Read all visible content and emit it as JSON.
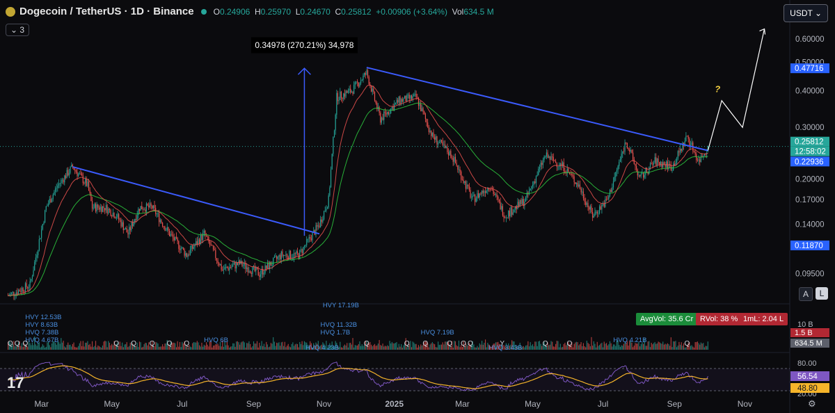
{
  "header": {
    "symbol": "Dogecoin / TetherUS · 1D · Binance",
    "open_label": "O",
    "open": "0.24906",
    "high_label": "H",
    "high": "0.25970",
    "low_label": "L",
    "low": "0.24670",
    "close_label": "C",
    "close": "0.25812",
    "change": "+0.00906 (+3.64%)",
    "vol_label": "Vol",
    "vol": "634.5 M",
    "indicators_count": "3"
  },
  "currency_button": "USDT",
  "scale_buttons": [
    "A",
    "L"
  ],
  "badges": {
    "avg_vol": "AvgVol: 35.6 Cr",
    "rvol": "RVol: 38 %",
    "one_ml": "1mL: 2.04 L"
  },
  "colors": {
    "up": "#26a69a",
    "down": "#ef5350",
    "trendline": "#3b5bfd",
    "ema": "#2ecc40",
    "rsi": "#7e57c2",
    "rsi_ma": "#f5b42a",
    "accent_blue": "#2962ff"
  },
  "chart_data": {
    "type": "candlestick",
    "scale": "log",
    "ylim": [
      0.075,
      0.7
    ],
    "price_axis_ticks": [
      "0.60000",
      "0.50000",
      "0.40000",
      "0.30000",
      "0.20000",
      "0.17000",
      "0.14000",
      "0.09500"
    ],
    "price_labels": [
      {
        "value": "0.47716",
        "color": "#2962ff"
      },
      {
        "value": "0.25812",
        "color": "#26a69a"
      },
      {
        "value": "12:58:02",
        "color": "#26a69a"
      },
      {
        "value": "0.22936",
        "color": "#2962ff"
      },
      {
        "value": "0.11870",
        "color": "#2962ff"
      }
    ],
    "time_axis": [
      "Mar",
      "May",
      "Jul",
      "Sep",
      "Nov",
      "2025",
      "Mar",
      "May",
      "Jul",
      "Sep",
      "Nov"
    ],
    "price_path": [
      [
        "2024-02-01",
        0.08
      ],
      [
        "2024-02-20",
        0.087
      ],
      [
        "2024-03-05",
        0.16
      ],
      [
        "2024-03-15",
        0.19
      ],
      [
        "2024-03-28",
        0.22
      ],
      [
        "2024-04-10",
        0.19
      ],
      [
        "2024-04-14",
        0.16
      ],
      [
        "2024-04-25",
        0.16
      ],
      [
        "2024-05-05",
        0.15
      ],
      [
        "2024-05-15",
        0.13
      ],
      [
        "2024-05-25",
        0.16
      ],
      [
        "2024-06-05",
        0.16
      ],
      [
        "2024-06-20",
        0.13
      ],
      [
        "2024-07-05",
        0.11
      ],
      [
        "2024-07-20",
        0.13
      ],
      [
        "2024-08-05",
        0.098
      ],
      [
        "2024-08-20",
        0.103
      ],
      [
        "2024-09-06",
        0.095
      ],
      [
        "2024-09-25",
        0.11
      ],
      [
        "2024-10-10",
        0.11
      ],
      [
        "2024-10-28",
        0.14
      ],
      [
        "2024-11-05",
        0.17
      ],
      [
        "2024-11-12",
        0.38
      ],
      [
        "2024-11-25",
        0.4
      ],
      [
        "2024-12-08",
        0.46
      ],
      [
        "2024-12-20",
        0.32
      ],
      [
        "2025-01-05",
        0.37
      ],
      [
        "2025-01-20",
        0.38
      ],
      [
        "2025-02-03",
        0.28
      ],
      [
        "2025-02-20",
        0.24
      ],
      [
        "2025-03-10",
        0.17
      ],
      [
        "2025-03-25",
        0.19
      ],
      [
        "2025-04-07",
        0.15
      ],
      [
        "2025-04-25",
        0.17
      ],
      [
        "2025-05-12",
        0.24
      ],
      [
        "2025-05-28",
        0.22
      ],
      [
        "2025-06-10",
        0.19
      ],
      [
        "2025-06-22",
        0.15
      ],
      [
        "2025-07-05",
        0.17
      ],
      [
        "2025-07-21",
        0.27
      ],
      [
        "2025-08-02",
        0.2
      ],
      [
        "2025-08-15",
        0.23
      ],
      [
        "2025-08-30",
        0.22
      ],
      [
        "2025-09-12",
        0.28
      ],
      [
        "2025-09-22",
        0.23
      ],
      [
        "2025-09-30",
        0.258
      ]
    ],
    "emas": [
      {
        "name": "",
        "color": "#2ecc40",
        "length": 50
      },
      {
        "name": "",
        "color": "#ef5350",
        "length": 20
      }
    ],
    "trendlines": [
      {
        "from": [
          "2024-03-28",
          0.22
        ],
        "to": [
          "2024-10-28",
          0.13
        ]
      },
      {
        "from": [
          "2024-12-08",
          0.48
        ],
        "to": [
          "2025-09-30",
          0.25
        ]
      }
    ],
    "measure": {
      "label": "0.34978 (270.21%) 34,978",
      "from": [
        "2024-10-15",
        0.128
      ],
      "to": [
        "2024-10-15",
        0.477
      ]
    },
    "projection": {
      "label": "?",
      "points": [
        [
          "2025-09-30",
          0.25
        ],
        [
          "2025-10-12",
          0.37
        ],
        [
          "2025-10-30",
          0.3
        ],
        [
          "2025-11-18",
          0.65
        ]
      ]
    },
    "volume_axis_ticks": [
      "10 B"
    ],
    "volume_labels": [
      {
        "value": "1.5 B",
        "color": "#ef5350"
      },
      {
        "value": "634.5 M",
        "color": "#787b86"
      }
    ],
    "volume_annotations": [
      {
        "date": "2024-02-28",
        "text": "HVY 12.53B",
        "row": 0
      },
      {
        "date": "2024-02-28",
        "text": "HVY 8.63B",
        "row": 1
      },
      {
        "date": "2024-02-28",
        "text": "HVQ 7.38B",
        "row": 2
      },
      {
        "date": "2024-02-28",
        "text": "HVQ 4.67B",
        "row": 3
      },
      {
        "date": "2024-08-01",
        "text": "HVQ 6B",
        "row": 3
      },
      {
        "date": "2024-11-12",
        "text": "HVY 17.19B",
        "row": -1
      },
      {
        "date": "2024-11-10",
        "text": "HVQ 11.32B",
        "row": 1
      },
      {
        "date": "2024-11-10",
        "text": "HVQ 1.7B",
        "row": 2
      },
      {
        "date": "2024-10-28",
        "text": "HVQ 4.23B",
        "row": 4
      },
      {
        "date": "2025-02-05",
        "text": "HVQ 7.19B",
        "row": 2
      },
      {
        "date": "2025-04-05",
        "text": "HVQ 3.43B",
        "row": 4
      },
      {
        "date": "2025-07-22",
        "text": "HVQ 4.21B",
        "row": 3
      }
    ],
    "volume_markers": [
      {
        "date": "2024-02-03",
        "text": "Q"
      },
      {
        "date": "2024-02-09",
        "text": "Q"
      },
      {
        "date": "2024-02-16",
        "text": "Q"
      },
      {
        "date": "2024-05-05",
        "text": "Q"
      },
      {
        "date": "2024-05-20",
        "text": "Q"
      },
      {
        "date": "2024-06-05",
        "text": "Q"
      },
      {
        "date": "2024-06-20",
        "text": "Q"
      },
      {
        "date": "2024-07-05",
        "text": "Q"
      },
      {
        "date": "2024-12-08",
        "text": "Q"
      },
      {
        "date": "2025-01-12",
        "text": "Q"
      },
      {
        "date": "2025-01-28",
        "text": "Q"
      },
      {
        "date": "2025-02-18",
        "text": "Q"
      },
      {
        "date": "2025-03-02",
        "text": "Q"
      },
      {
        "date": "2025-03-08",
        "text": "Q"
      },
      {
        "date": "2025-04-05",
        "text": "Y"
      },
      {
        "date": "2025-05-12",
        "text": "Q"
      },
      {
        "date": "2025-06-02",
        "text": "Q"
      },
      {
        "date": "2025-09-12",
        "text": "Q"
      }
    ],
    "rsi_axis_ticks": [
      "80.00",
      "20.00"
    ],
    "rsi_labels": [
      {
        "value": "56.54",
        "color": "#7e57c2"
      },
      {
        "value": "48.80",
        "color": "#f5b42a"
      }
    ]
  }
}
